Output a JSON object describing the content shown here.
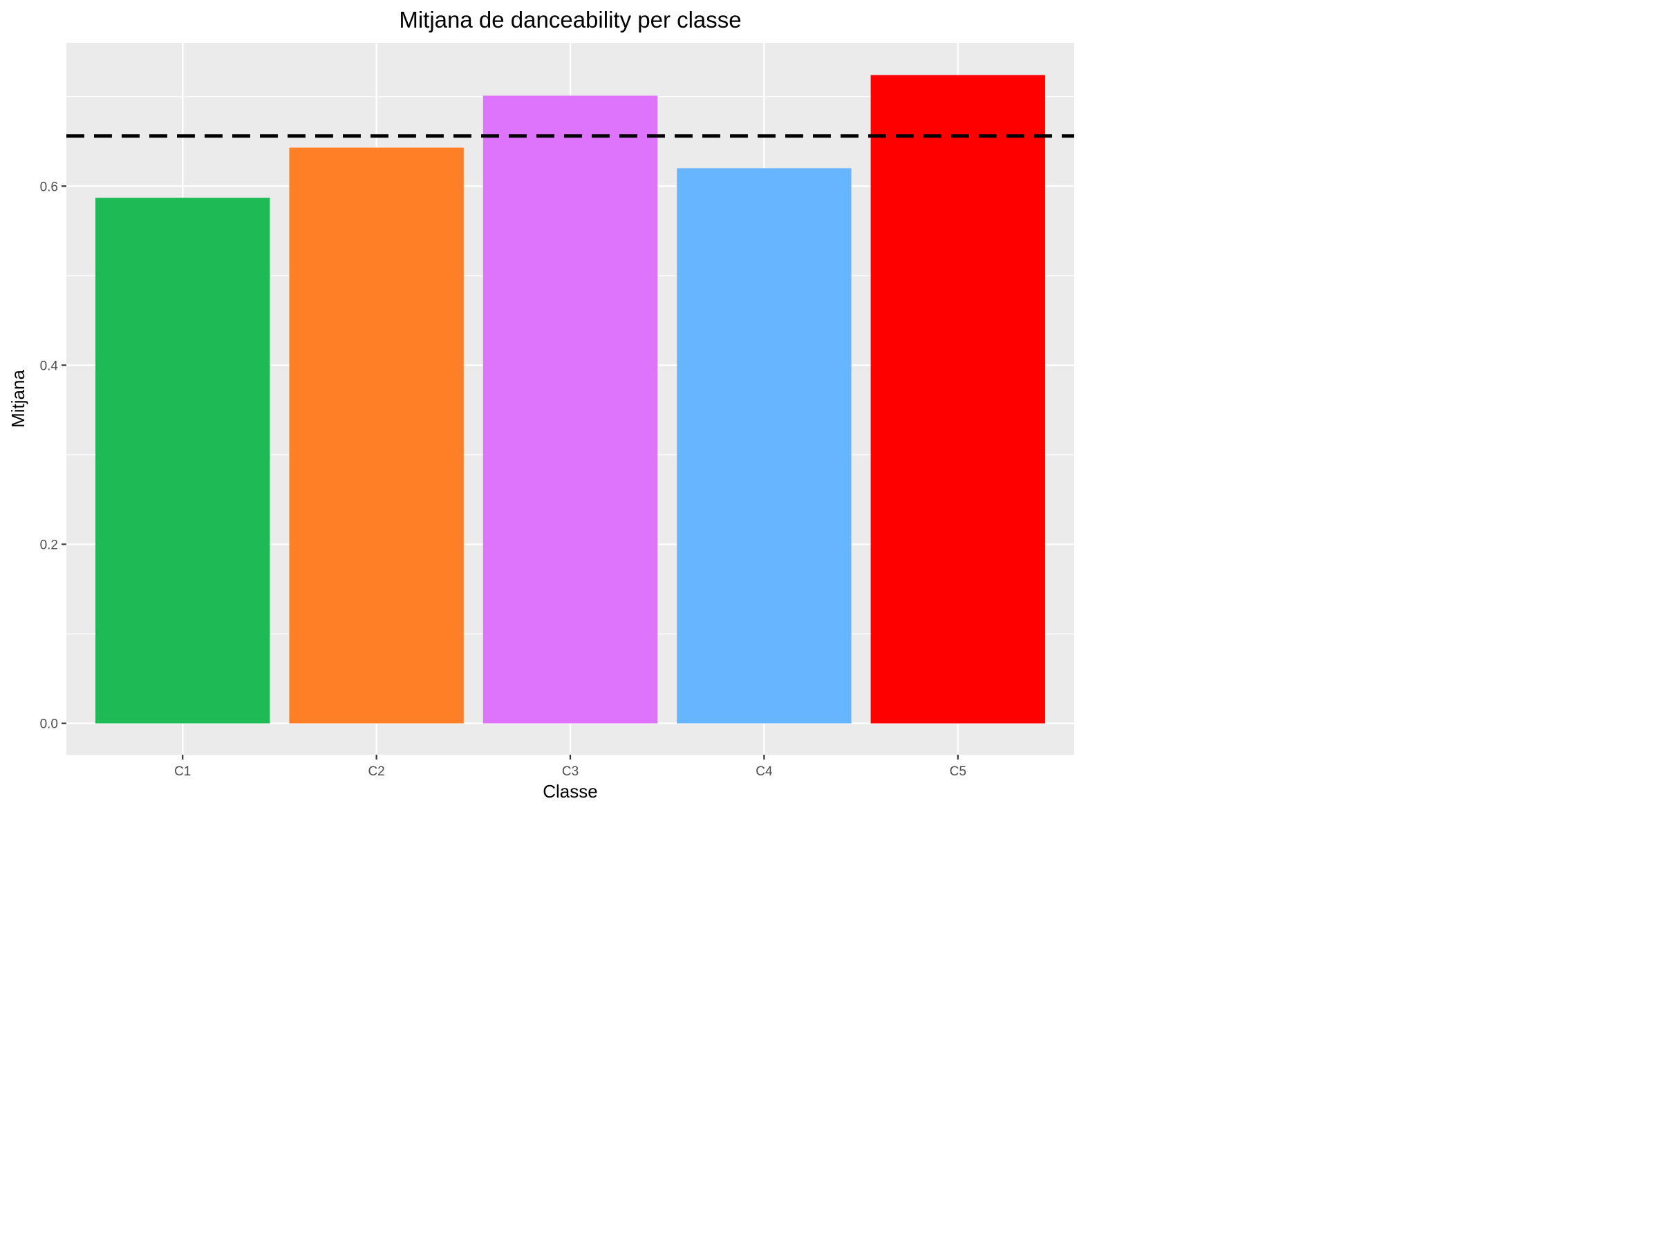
{
  "chart_data": {
    "type": "bar",
    "title": "Mitjana de danceability per classe",
    "xlabel": "Classe",
    "ylabel": "Mitjana",
    "categories": [
      "C1",
      "C2",
      "C3",
      "C4",
      "C5"
    ],
    "values": [
      0.587,
      0.643,
      0.701,
      0.62,
      0.724
    ],
    "bar_colors": [
      "#1EBA55",
      "#FF7F26",
      "#DF74FC",
      "#67B4FF",
      "#FF0000"
    ],
    "reference_line": {
      "value": 0.656,
      "style": "dashed",
      "color": "#000000"
    },
    "ylim": [
      -0.035,
      0.76
    ],
    "yticks": [
      0.0,
      0.2,
      0.4,
      0.6
    ],
    "ytick_labels": [
      "0.0",
      "0.2",
      "0.4",
      "0.6"
    ],
    "grid": true,
    "legend": "none",
    "panel_background": "#EBEBEB",
    "gridline_color": "#FFFFFF"
  }
}
